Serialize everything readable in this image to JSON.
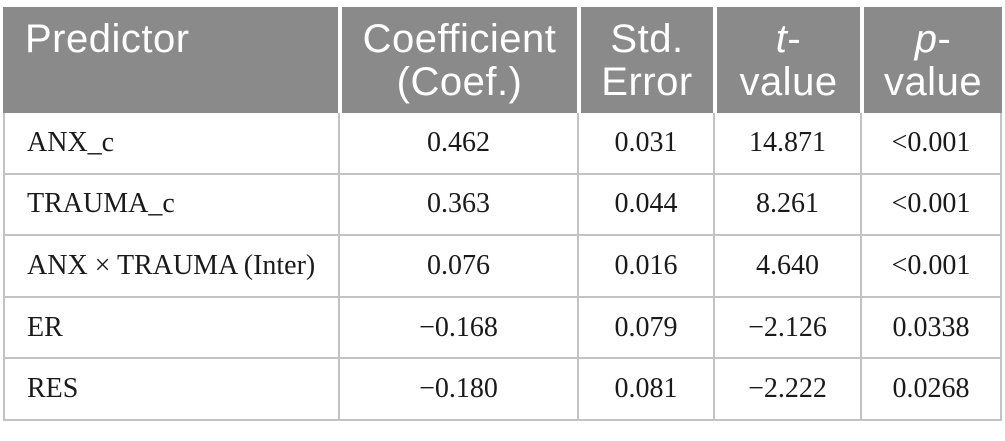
{
  "colors": {
    "header_bg": "#8a8a8a",
    "header_text": "#ffffff",
    "body_text": "#1a1a1a",
    "border": "#c3c3c3",
    "background": "#ffffff"
  },
  "table": {
    "header": {
      "columns": [
        {
          "italic_char": "",
          "line1_rest": "Predictor",
          "line2": ""
        },
        {
          "italic_char": "",
          "line1_rest": "Coefficient",
          "line2": "(Coef.)"
        },
        {
          "italic_char": "",
          "line1_rest": "Std.",
          "line2": "Error"
        },
        {
          "italic_char": "t",
          "line1_rest": "-",
          "line2": "value"
        },
        {
          "italic_char": "p",
          "line1_rest": "-",
          "line2": "value"
        }
      ]
    },
    "rows": [
      {
        "predictor": "ANX_c",
        "coefficient": "0.462",
        "std_error": "0.031",
        "t_value": "14.871",
        "p_value": "<0.001"
      },
      {
        "predictor": "TRAUMA_c",
        "coefficient": "0.363",
        "std_error": "0.044",
        "t_value": "8.261",
        "p_value": "<0.001"
      },
      {
        "predictor": "ANX × TRAUMA (Inter)",
        "coefficient": "0.076",
        "std_error": "0.016",
        "t_value": "4.640",
        "p_value": "<0.001"
      },
      {
        "predictor": "ER",
        "coefficient": "−0.168",
        "std_error": "0.079",
        "t_value": "−2.126",
        "p_value": "0.0338"
      },
      {
        "predictor": "RES",
        "coefficient": "−0.180",
        "std_error": "0.081",
        "t_value": "−2.222",
        "p_value": "0.0268"
      }
    ]
  }
}
